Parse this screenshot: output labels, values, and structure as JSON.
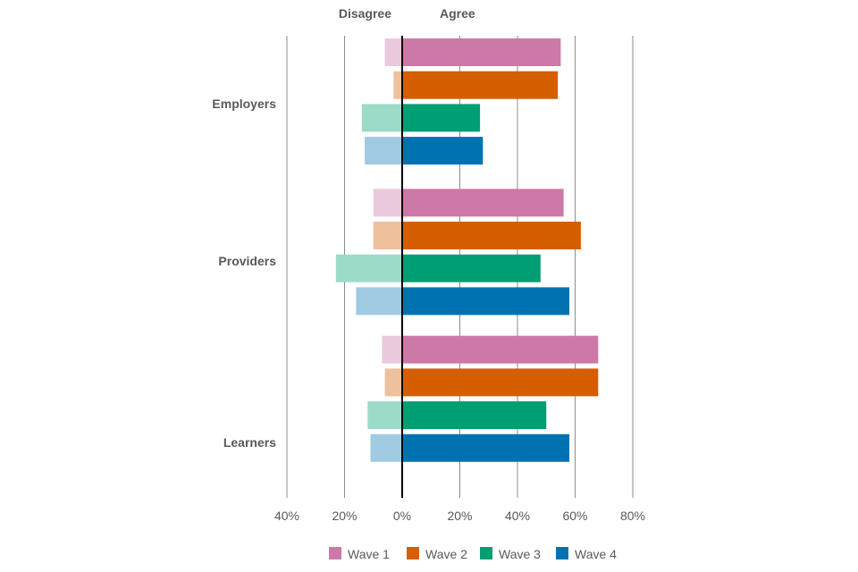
{
  "chart_data": {
    "type": "bar",
    "orientation": "horizontal",
    "diverging": true,
    "left_title": "Disagree",
    "right_title": "Agree",
    "categories": [
      "Employers",
      "Providers",
      "Learners"
    ],
    "series": [
      {
        "name": "Wave 1",
        "color": "#cc79a7",
        "light_color": "#ebc9dc",
        "agree": [
          55,
          56,
          68
        ],
        "disagree": [
          6,
          10,
          7
        ]
      },
      {
        "name": "Wave 2",
        "color": "#d55e00",
        "light_color": "#efc09c",
        "agree": [
          54,
          62,
          68
        ],
        "disagree": [
          3,
          10,
          6
        ]
      },
      {
        "name": "Wave 3",
        "color": "#009e73",
        "light_color": "#9ddbc9",
        "agree": [
          27,
          48,
          50
        ],
        "disagree": [
          14,
          23,
          12
        ]
      },
      {
        "name": "Wave 4",
        "color": "#0072b2",
        "light_color": "#9fcae2",
        "agree": [
          28,
          58,
          58
        ],
        "disagree": [
          13,
          16,
          11
        ]
      }
    ],
    "xlim": [
      -40,
      80
    ],
    "xticks": [
      -40,
      -20,
      0,
      20,
      40,
      60,
      80
    ],
    "xtick_labels": [
      "40%",
      "20%",
      "0%",
      "20%",
      "40%",
      "60%",
      "80%"
    ],
    "grid": true,
    "legend": "bottom"
  }
}
